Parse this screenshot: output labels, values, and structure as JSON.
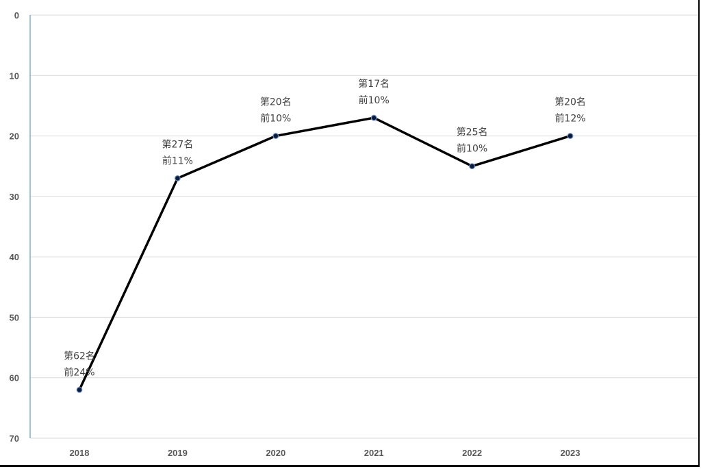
{
  "chart_data": {
    "type": "line",
    "title": "",
    "xlabel": "",
    "ylabel": "",
    "y_reversed": true,
    "ylim": [
      0,
      70
    ],
    "y_ticks": [
      0,
      10,
      20,
      30,
      40,
      50,
      60,
      70
    ],
    "categories": [
      "2018",
      "2019",
      "2020",
      "2021",
      "2022",
      "2023"
    ],
    "grid": "horizontal",
    "legend": "none",
    "colors": {
      "line": "#000000",
      "marker": "#0b1b3a",
      "grid": "#d9d9d9",
      "axis": "#5b9bd5"
    },
    "series": [
      {
        "values": [
          62,
          27,
          20,
          17,
          25,
          20
        ],
        "labels": [
          [
            "第62名",
            "前24%"
          ],
          [
            "第27名",
            "前11%"
          ],
          [
            "第20名",
            "前10%"
          ],
          [
            "第17名",
            "前10%"
          ],
          [
            "第25名",
            "前10%"
          ],
          [
            "第20名",
            "前12%"
          ]
        ]
      }
    ]
  }
}
